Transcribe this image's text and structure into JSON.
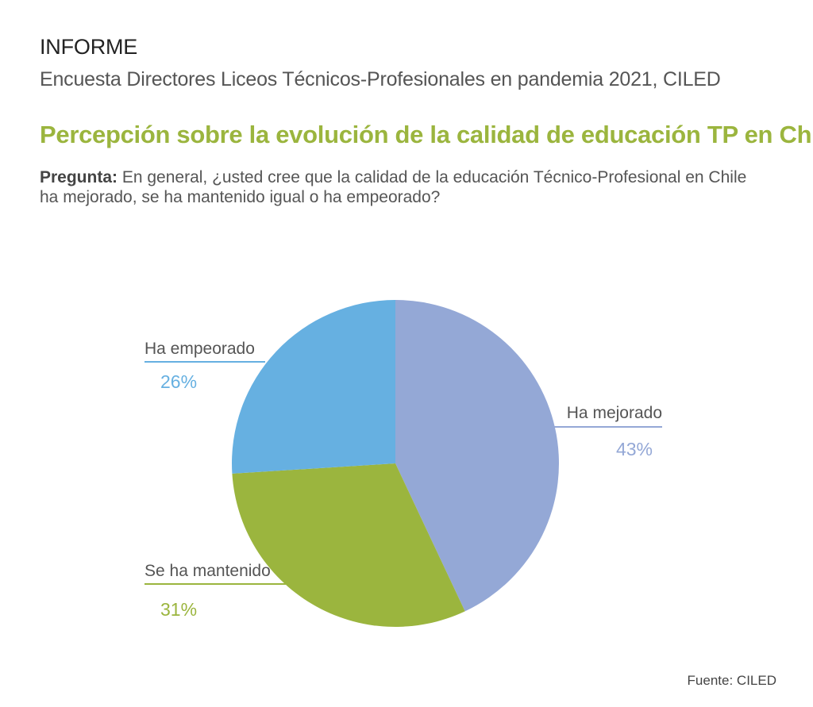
{
  "header": {
    "kicker": "INFORME",
    "subtitle": "Encuesta Directores Liceos Técnicos-Profesionales en pandemia 2021, CILED",
    "title": "Percepción sobre la evolución de la calidad de educación TP en Chile.",
    "question_label": "Pregunta:",
    "question_text": " En general, ¿usted cree que la calidad de la educación Técnico-Profesional en Chile ha mejorado, se ha mantenido igual o ha empeorado?"
  },
  "chart_data": {
    "type": "pie",
    "slices": [
      {
        "label": "Ha mejorado",
        "value": 43,
        "display": "43%",
        "color": "#94a8d6"
      },
      {
        "label": "Se ha mantenido",
        "value": 31,
        "display": "31%",
        "color": "#9bb53e"
      },
      {
        "label": "Ha empeorado",
        "value": 26,
        "display": "26%",
        "color": "#66b0e1"
      }
    ],
    "start": "12 o'clock, clockwise",
    "label_style": "external labels with leader lines"
  },
  "footer": {
    "source": "Fuente: CILED"
  },
  "colors": {
    "title": "#9bb53e",
    "text": "#555555"
  }
}
